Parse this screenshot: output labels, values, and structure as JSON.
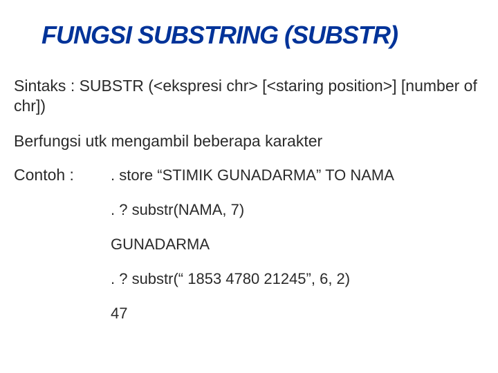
{
  "title": {
    "text": "FUNGSI SUBSTRING (SUBSTR)",
    "color": "#003399",
    "fontsize": 36
  },
  "syntax": {
    "text": "Sintaks : SUBSTR (<ekspresi chr> [<staring position>] [number of chr])",
    "fontsize": 23
  },
  "description": {
    "text": "Berfungsi utk mengambil beberapa karakter",
    "fontsize": 23
  },
  "contoh_label": {
    "text": "Contoh :",
    "fontsize": 23
  },
  "examples": {
    "fontsize": 22,
    "lines": [
      ". store “STIMIK GUNADARMA” TO NAMA",
      ". ? substr(NAMA, 7)",
      "GUNADARMA",
      ". ? substr(“ 1853 4780 21245”, 6, 2)",
      "47"
    ]
  },
  "colors": {
    "background": "#ffffff",
    "body_text": "#2a2a2a"
  }
}
